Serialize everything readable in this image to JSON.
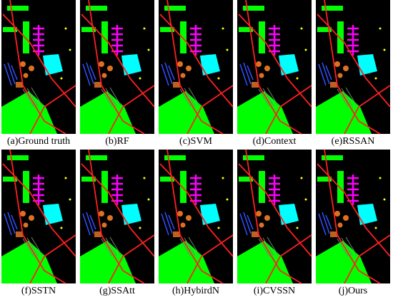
{
  "panels": [
    {
      "caption": "(a)Ground truth"
    },
    {
      "caption": "(b)RF"
    },
    {
      "caption": "(c)SVM"
    },
    {
      "caption": "(d)Context"
    },
    {
      "caption": "(e)RSSAN"
    },
    {
      "caption": "(f)SSTN"
    },
    {
      "caption": "(g)SSAtt"
    },
    {
      "caption": "(h)HybirdN"
    },
    {
      "caption": "(i)CVSSN"
    },
    {
      "caption": "(j)Ours"
    }
  ]
}
